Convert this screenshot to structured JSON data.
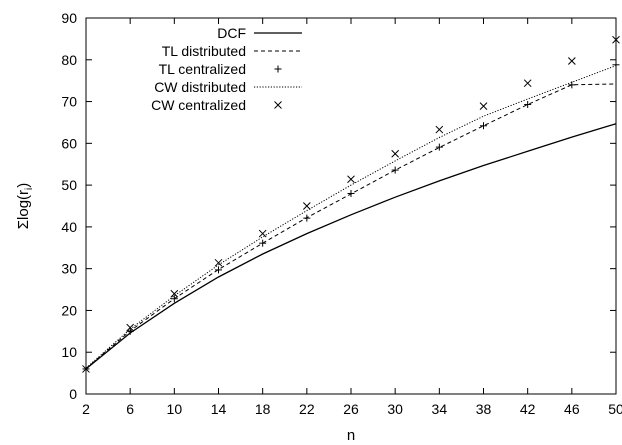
{
  "chart_data": {
    "type": "line",
    "xlabel": "n",
    "ylabel": "Σ log(r_i)",
    "ylabel_parts": {
      "prefix": "Σ",
      "func": "log",
      "open": "(",
      "var": "r",
      "sub": "i",
      "close": ")"
    },
    "xlim": [
      2,
      50
    ],
    "ylim": [
      0,
      90
    ],
    "xticks": [
      2,
      6,
      10,
      14,
      18,
      22,
      26,
      30,
      34,
      38,
      42,
      46,
      50
    ],
    "yticks": [
      0,
      10,
      20,
      30,
      40,
      50,
      60,
      70,
      80,
      90
    ],
    "xtick_labels": [
      "2",
      "6",
      "10",
      "14",
      "18",
      "22",
      "26",
      "30",
      "34",
      "38",
      "42",
      "46",
      "50"
    ],
    "ytick_labels": [
      "0",
      "10",
      "20",
      "30",
      "40",
      "50",
      "60",
      "70",
      "80",
      "90"
    ],
    "legend_position": "top-left",
    "grid": false,
    "series": [
      {
        "name": "DCF",
        "style": "solid",
        "x": [
          2,
          6,
          10,
          14,
          18,
          22,
          26,
          30,
          34,
          38,
          42,
          46,
          50
        ],
        "y": [
          6.0,
          14.6,
          21.7,
          28.0,
          33.5,
          38.4,
          42.9,
          47.1,
          51.0,
          54.7,
          58.1,
          61.5,
          64.7
        ]
      },
      {
        "name": "TL distributed",
        "style": "dashed",
        "x": [
          2,
          6,
          10,
          14,
          18,
          22,
          26,
          30,
          34,
          38,
          42,
          46,
          50
        ],
        "y": [
          6.1,
          15.1,
          22.8,
          29.8,
          36.1,
          42.2,
          47.9,
          53.6,
          59.0,
          64.2,
          69.3,
          74.0,
          74.2
        ]
      },
      {
        "name": "TL centralized",
        "style": "plus",
        "x": [
          2,
          6,
          10,
          14,
          18,
          22,
          26,
          30,
          34,
          38,
          42,
          46,
          50
        ],
        "y": [
          6.0,
          15.0,
          22.8,
          29.7,
          36.1,
          42.1,
          48.0,
          53.6,
          59.1,
          64.2,
          69.3,
          74.0,
          78.8
        ]
      },
      {
        "name": "CW distributed",
        "style": "dotted",
        "x": [
          2,
          6,
          10,
          14,
          18,
          22,
          26,
          30,
          34,
          38,
          42,
          46,
          50
        ],
        "y": [
          6.2,
          15.5,
          23.5,
          30.9,
          37.6,
          43.9,
          50.0,
          55.8,
          61.4,
          66.5,
          70.6,
          74.6,
          78.6
        ]
      },
      {
        "name": "CW centralized",
        "style": "cross",
        "x": [
          2,
          6,
          10,
          14,
          18,
          22,
          26,
          30,
          34,
          38,
          42,
          46,
          50
        ],
        "y": [
          6.0,
          15.9,
          24.0,
          31.4,
          38.4,
          45.0,
          51.4,
          57.5,
          63.3,
          68.9,
          74.4,
          79.7,
          84.8
        ]
      }
    ]
  }
}
